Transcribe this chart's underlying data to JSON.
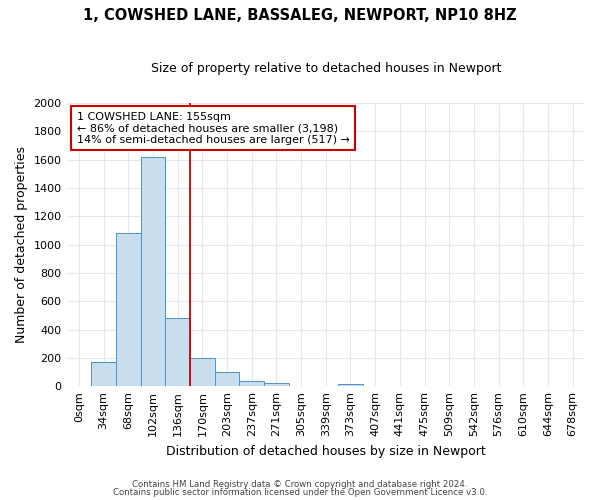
{
  "title": "1, COWSHED LANE, BASSALEG, NEWPORT, NP10 8HZ",
  "subtitle": "Size of property relative to detached houses in Newport",
  "xlabel": "Distribution of detached houses by size in Newport",
  "ylabel": "Number of detached properties",
  "categories": [
    "0sqm",
    "34sqm",
    "68sqm",
    "102sqm",
    "136sqm",
    "170sqm",
    "203sqm",
    "237sqm",
    "271sqm",
    "305sqm",
    "339sqm",
    "373sqm",
    "407sqm",
    "441sqm",
    "475sqm",
    "509sqm",
    "542sqm",
    "576sqm",
    "610sqm",
    "644sqm",
    "678sqm"
  ],
  "bar_heights": [
    0,
    170,
    1080,
    1620,
    480,
    200,
    100,
    40,
    25,
    0,
    0,
    18,
    0,
    0,
    0,
    0,
    0,
    0,
    0,
    0,
    0
  ],
  "bar_color": "#c8dded",
  "bar_edge_color": "#4d94c9",
  "background_color": "#ffffff",
  "fig_background_color": "#ffffff",
  "grid_color": "#e0e8f0",
  "vline_x": 4.5,
  "vline_color": "#cc0000",
  "annotation_text": "1 COWSHED LANE: 155sqm\n← 86% of detached houses are smaller (3,198)\n14% of semi-detached houses are larger (517) →",
  "annotation_box_color": "#ffffff",
  "annotation_box_edge": "#cc0000",
  "ylim": [
    0,
    2000
  ],
  "yticks": [
    0,
    200,
    400,
    600,
    800,
    1000,
    1200,
    1400,
    1600,
    1800,
    2000
  ],
  "footer1": "Contains HM Land Registry data © Crown copyright and database right 2024.",
  "footer2": "Contains public sector information licensed under the Open Government Licence v3.0."
}
